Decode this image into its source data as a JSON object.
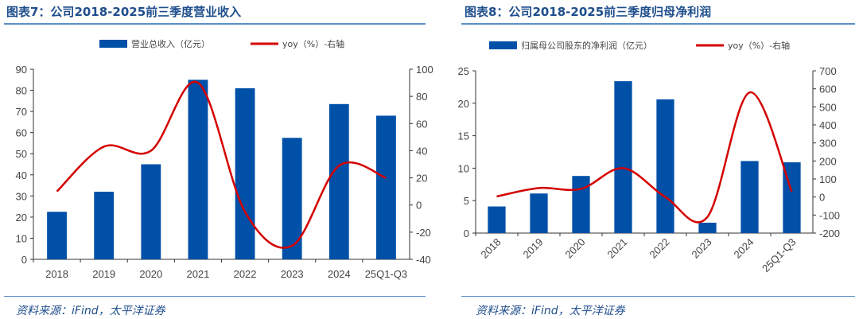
{
  "chart_data": [
    {
      "type": "bar",
      "title": "图表7：公司2018-2025前三季度营业收入",
      "categories": [
        "2018",
        "2019",
        "2020",
        "2021",
        "2022",
        "2023",
        "2024",
        "25Q1-Q3"
      ],
      "series": [
        {
          "name": "营业总收入（亿元）",
          "type": "bar",
          "axis": "left",
          "values": [
            22.5,
            32,
            45,
            85,
            81,
            57.5,
            73.5,
            68
          ]
        },
        {
          "name": "yoy（%）-右轴",
          "type": "line",
          "axis": "right",
          "values": [
            10,
            43,
            40,
            90,
            -5,
            -30,
            29,
            20
          ]
        }
      ],
      "ylim": [
        0,
        90
      ],
      "yticks": [
        0,
        10,
        20,
        30,
        40,
        50,
        60,
        70,
        80,
        90
      ],
      "y2lim": [
        -40,
        100
      ],
      "y2ticks": [
        -40,
        -20,
        0,
        20,
        40,
        60,
        80,
        100
      ],
      "source": "资料来源：iFind，太平洋证券"
    },
    {
      "type": "bar",
      "title": "图表8：公司2018-2025前三季度归母净利润",
      "categories": [
        "2018",
        "2019",
        "2020",
        "2021",
        "2022",
        "2023",
        "2024",
        "25Q1-Q3"
      ],
      "series": [
        {
          "name": "归属母公司股东的净利润（亿元）",
          "type": "bar",
          "axis": "left",
          "values": [
            4.1,
            6.1,
            8.8,
            23.4,
            20.6,
            1.6,
            11.1,
            10.9
          ]
        },
        {
          "name": "yoy（%）-右轴",
          "type": "line",
          "axis": "right",
          "values": [
            3,
            50,
            45,
            160,
            0,
            -110,
            580,
            30
          ]
        }
      ],
      "ylim": [
        0,
        25
      ],
      "yticks": [
        0,
        5,
        10,
        15,
        20,
        25
      ],
      "y2lim": [
        -200,
        700
      ],
      "y2ticks": [
        -200,
        -100,
        0,
        100,
        200,
        300,
        400,
        500,
        600,
        700
      ],
      "source": "资料来源：iFind，太平洋证券"
    }
  ],
  "colors": {
    "bar": "#0050a8",
    "line": "#d40000",
    "accent": "#1f4e8c"
  }
}
